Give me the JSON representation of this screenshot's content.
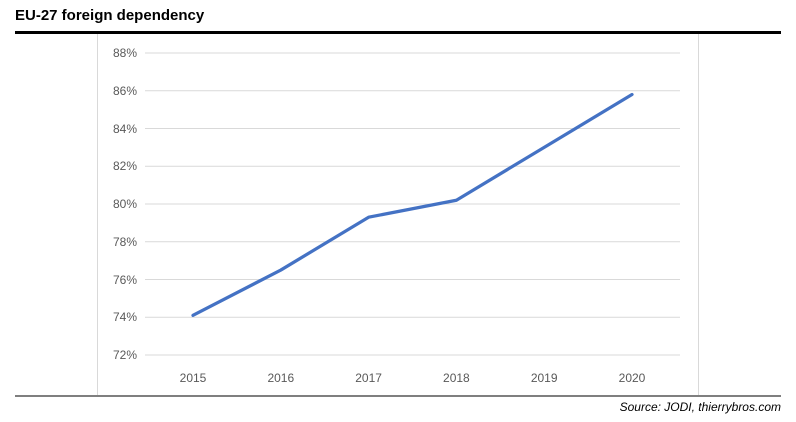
{
  "page": {
    "title": "EU-27 foreign dependency",
    "source_note": "Source: JODI, thierrybros.com"
  },
  "chart_data": {
    "type": "line",
    "title": "EU-27 foreign dependency",
    "categories": [
      "2015",
      "2016",
      "2017",
      "2018",
      "2019",
      "2020"
    ],
    "series": [
      {
        "name": "EU-27 foreign dependency",
        "values": [
          74.1,
          76.5,
          79.3,
          80.2,
          83.0,
          85.8
        ]
      }
    ],
    "y_ticks": [
      {
        "value": 88,
        "label": "88%"
      },
      {
        "value": 86,
        "label": "86%"
      },
      {
        "value": 84,
        "label": "84%"
      },
      {
        "value": 82,
        "label": "82%"
      },
      {
        "value": 80,
        "label": "80%"
      },
      {
        "value": 78,
        "label": "78%"
      },
      {
        "value": 76,
        "label": "76%"
      },
      {
        "value": 74,
        "label": "74%"
      },
      {
        "value": 72,
        "label": "72%"
      }
    ],
    "ylim": [
      72,
      88
    ],
    "xlabel": "",
    "ylabel": "",
    "grid": true,
    "legend": false,
    "annotation": "Source: JODI, thierrybros.com",
    "colors": {
      "line": "#4472C4",
      "gridline": "#d9d9d9",
      "axis_label": "#595959",
      "title": "#000000",
      "title_rule": "#000000",
      "bottom_rule": "#7f7f7f"
    }
  }
}
